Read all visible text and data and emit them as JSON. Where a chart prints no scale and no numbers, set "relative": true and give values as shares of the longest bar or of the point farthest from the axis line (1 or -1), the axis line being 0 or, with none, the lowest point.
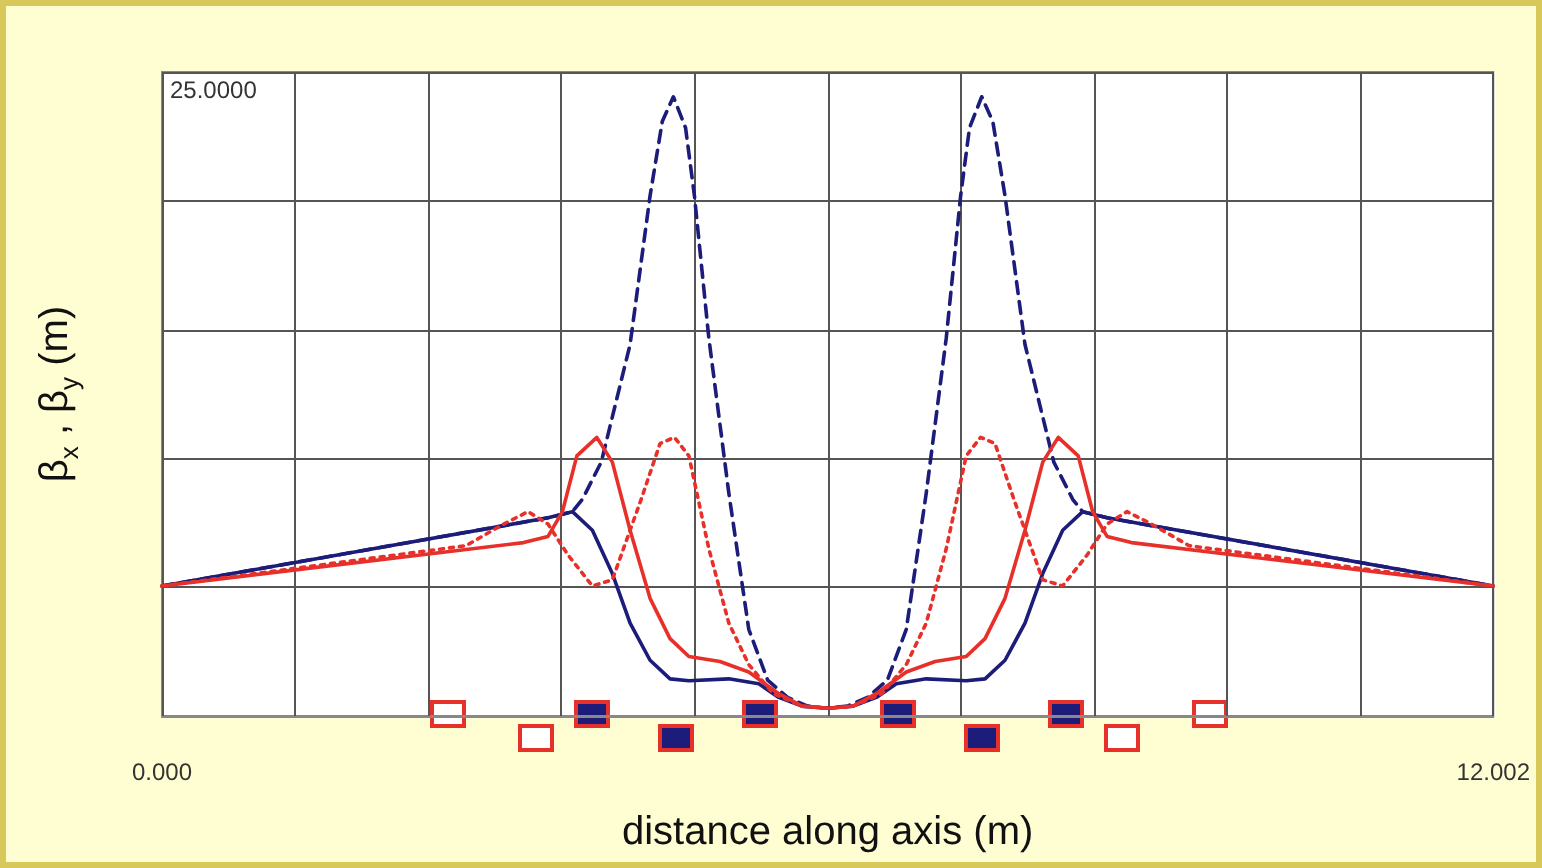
{
  "chart_data": {
    "type": "line",
    "xlabel": "distance along axis (m)",
    "ylabel": "β$_{x}$ , β$_{y}$ (m)",
    "annotations": [
      "25.0000"
    ],
    "relative": true,
    "xlim": [
      0,
      12.002
    ],
    "xticks": [
      {
        "value": 0,
        "label": "0.000"
      },
      {
        "value": 1.2002,
        "label": null
      },
      {
        "value": 2.4004,
        "label": null
      },
      {
        "value": 3.6006,
        "label": null
      },
      {
        "value": 4.8008,
        "label": null
      },
      {
        "value": 6.001,
        "label": null
      },
      {
        "value": 7.2012,
        "label": null
      },
      {
        "value": 8.4014,
        "label": null
      },
      {
        "value": 9.6016,
        "label": null
      },
      {
        "value": 10.8018,
        "label": null
      },
      {
        "value": 12.002,
        "label": "12.002"
      }
    ],
    "grid": true,
    "marker": "none",
    "series": [
      {
        "color": "#1c1c7a",
        "line_style": "solid",
        "x": [
          0,
          3.48,
          3.7,
          3.88,
          4.06,
          4.22,
          4.4,
          4.58,
          4.75,
          5.11,
          5.38,
          5.56,
          5.77,
          6.0,
          6.23,
          6.44,
          6.62,
          6.89,
          7.25,
          7.42,
          7.6,
          7.78,
          7.94,
          8.12,
          8.3,
          8.52,
          12.002
        ],
        "values": [
          0.21,
          0.32,
          0.33,
          0.3,
          0.23,
          0.15,
          0.09,
          0.06,
          0.057,
          0.06,
          0.052,
          0.03,
          0.016,
          0.0125,
          0.016,
          0.03,
          0.052,
          0.06,
          0.057,
          0.06,
          0.09,
          0.15,
          0.23,
          0.3,
          0.33,
          0.32,
          0.21
        ]
      },
      {
        "color": "#1c1c7a",
        "line_style": "dashed",
        "x": [
          0,
          3.48,
          3.7,
          3.79,
          3.96,
          4.22,
          4.4,
          4.51,
          4.61,
          4.72,
          4.8,
          4.93,
          5.11,
          5.29,
          5.46,
          5.64,
          5.82,
          6.0,
          6.18,
          6.36,
          6.54,
          6.71,
          6.89,
          7.07,
          7.2,
          7.28,
          7.39,
          7.49,
          7.6,
          7.78,
          8.04,
          8.21,
          8.3,
          8.52,
          12.002
        ],
        "values": [
          0.21,
          0.32,
          0.33,
          0.35,
          0.41,
          0.6,
          0.84,
          0.96,
          1.0,
          0.95,
          0.84,
          0.61,
          0.36,
          0.14,
          0.058,
          0.03,
          0.016,
          0.0125,
          0.016,
          0.03,
          0.058,
          0.14,
          0.36,
          0.61,
          0.84,
          0.95,
          1.0,
          0.96,
          0.84,
          0.6,
          0.41,
          0.35,
          0.33,
          0.32,
          0.21
        ]
      },
      {
        "color": "#e8302a",
        "line_style": "solid",
        "x": [
          0,
          3.26,
          3.48,
          3.61,
          3.74,
          3.92,
          4.06,
          4.22,
          4.4,
          4.58,
          4.75,
          5.03,
          5.29,
          5.56,
          5.77,
          6.0,
          6.23,
          6.44,
          6.71,
          6.97,
          7.25,
          7.42,
          7.6,
          7.78,
          7.94,
          8.08,
          8.26,
          8.39,
          8.52,
          8.74,
          12.002
        ],
        "values": [
          0.21,
          0.28,
          0.29,
          0.33,
          0.42,
          0.45,
          0.41,
          0.3,
          0.19,
          0.125,
          0.096,
          0.088,
          0.071,
          0.036,
          0.016,
          0.0125,
          0.016,
          0.036,
          0.071,
          0.088,
          0.096,
          0.125,
          0.19,
          0.3,
          0.41,
          0.45,
          0.42,
          0.33,
          0.29,
          0.28,
          0.21
        ]
      },
      {
        "color": "#e8302a",
        "line_style": "dotted",
        "x": [
          0,
          2.74,
          3.08,
          3.3,
          3.48,
          3.66,
          3.88,
          4.06,
          4.32,
          4.49,
          4.62,
          4.75,
          4.93,
          5.11,
          5.29,
          5.51,
          5.77,
          6.0,
          6.23,
          6.49,
          6.71,
          6.89,
          7.07,
          7.25,
          7.38,
          7.51,
          7.68,
          7.94,
          8.12,
          8.34,
          8.52,
          8.7,
          8.92,
          9.26,
          12.002
        ],
        "values": [
          0.21,
          0.275,
          0.31,
          0.33,
          0.31,
          0.26,
          0.21,
          0.22,
          0.35,
          0.44,
          0.45,
          0.42,
          0.27,
          0.15,
          0.083,
          0.036,
          0.016,
          0.0125,
          0.016,
          0.036,
          0.083,
          0.15,
          0.27,
          0.42,
          0.45,
          0.44,
          0.35,
          0.22,
          0.21,
          0.26,
          0.31,
          0.33,
          0.31,
          0.275,
          0.21
        ]
      }
    ]
  }
}
